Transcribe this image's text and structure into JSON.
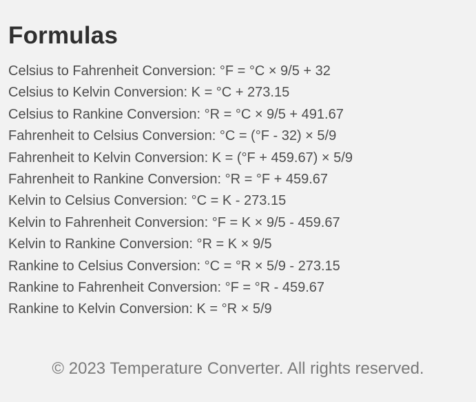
{
  "section": {
    "title": "Formulas",
    "formulas": [
      "Celsius to Fahrenheit Conversion: °F = °C × 9/5 + 32",
      "Celsius to Kelvin Conversion: K = °C + 273.15",
      "Celsius to Rankine Conversion: °R = °C × 9/5 + 491.67",
      "Fahrenheit to Celsius Conversion: °C = (°F - 32) × 5/9",
      "Fahrenheit to Kelvin Conversion: K = (°F + 459.67) × 5/9",
      "Fahrenheit to Rankine Conversion: °R = °F + 459.67",
      "Kelvin to Celsius Conversion: °C = K - 273.15",
      "Kelvin to Fahrenheit Conversion: °F = K × 9/5 - 459.67",
      "Kelvin to Rankine Conversion: °R = K × 9/5",
      "Rankine to Celsius Conversion: °C = °R × 5/9 - 273.15",
      "Rankine to Fahrenheit Conversion: °F = °R - 459.67",
      "Rankine to Kelvin Conversion: K = °R × 5/9"
    ]
  },
  "footer": {
    "text": "© 2023 Temperature Converter. All rights reserved."
  }
}
